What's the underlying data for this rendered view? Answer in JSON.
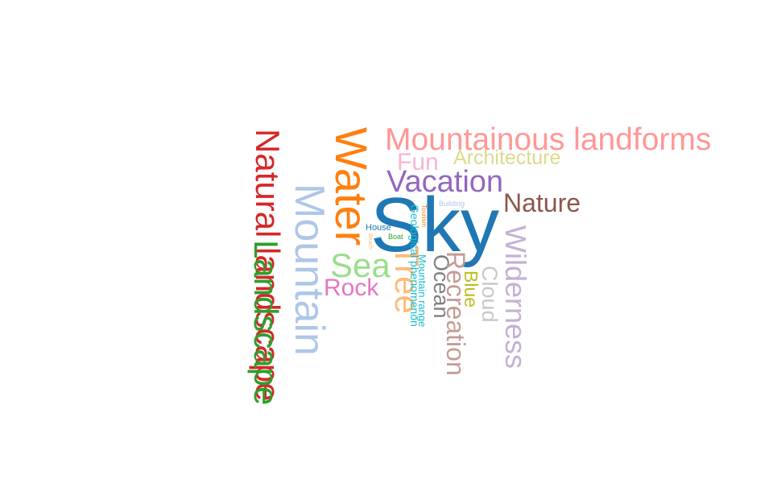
{
  "words": {
    "mountainous_landforms": {
      "text": "Mountainous landforms",
      "color": "#ff9896"
    },
    "fun": {
      "text": "Fun",
      "color": "#f7b6d2"
    },
    "architecture": {
      "text": "Architecture",
      "color": "#dbdb8d"
    },
    "vacation": {
      "text": "Vacation",
      "color": "#9467bd"
    },
    "nature": {
      "text": "Nature",
      "color": "#8c564b"
    },
    "sky": {
      "text": "Sky",
      "color": "#1f77b4"
    },
    "building": {
      "text": "Building",
      "color": "#aec7e8"
    },
    "house": {
      "text": "House",
      "color": "#1f77b4"
    },
    "boat": {
      "text": "Boat",
      "color": "#2ca02c"
    },
    "beach": {
      "text": "Beach",
      "color": "#ffbb78"
    },
    "tourism": {
      "text": "Tourism",
      "color": "#ff7f0e"
    },
    "geological_phenomenon": {
      "text": "Geological phenomenon",
      "color": "#17becf"
    },
    "mountain_range": {
      "text": "Mountain range",
      "color": "#17becf"
    },
    "water": {
      "text": "Water",
      "color": "#ff7f0e"
    },
    "natural_landscape": {
      "text": "Natural landscape",
      "color": "#d62728"
    },
    "landscape": {
      "text": "Landscape",
      "color": "#2ca02c"
    },
    "mountain": {
      "text": "Mountain",
      "color": "#aec7e8"
    },
    "sea": {
      "text": "Sea",
      "color": "#98df8a"
    },
    "tree": {
      "text": "Tree",
      "color": "#ffbb78"
    },
    "rock": {
      "text": "Rock",
      "color": "#e377c2"
    },
    "ocean": {
      "text": "Ocean",
      "color": "#7f7f7f"
    },
    "recreation": {
      "text": "Recreation",
      "color": "#c49c94"
    },
    "blue": {
      "text": "Blue",
      "color": "#bcbd22"
    },
    "cloud": {
      "text": "Cloud",
      "color": "#c7c7c7"
    },
    "wilderness": {
      "text": "Wilderness",
      "color": "#c5b0d5"
    }
  }
}
